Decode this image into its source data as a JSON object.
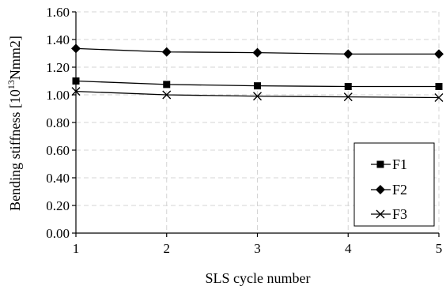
{
  "chart_data": {
    "type": "line",
    "xlabel": "SLS cycle number",
    "ylabel_main": "Bending stiffness [10",
    "ylabel_sup": "13",
    "ylabel_tail": "Nmm2]",
    "x": [
      1,
      2,
      3,
      4,
      5
    ],
    "xlim": [
      1,
      5
    ],
    "ylim": [
      0,
      1.6
    ],
    "x_ticks": [
      "1",
      "2",
      "3",
      "4",
      "5"
    ],
    "y_ticks": [
      "0.00",
      "0.20",
      "0.40",
      "0.60",
      "0.80",
      "1.00",
      "1.20",
      "1.40",
      "1.60"
    ],
    "grid": true,
    "legend_position": "bottom-right",
    "series": [
      {
        "name": "F1",
        "marker": "square",
        "values": [
          1.1,
          1.075,
          1.065,
          1.06,
          1.06
        ]
      },
      {
        "name": "F2",
        "marker": "diamond",
        "values": [
          1.335,
          1.31,
          1.305,
          1.295,
          1.295
        ]
      },
      {
        "name": "F3",
        "marker": "x",
        "values": [
          1.025,
          1.0,
          0.99,
          0.985,
          0.98
        ]
      }
    ]
  }
}
